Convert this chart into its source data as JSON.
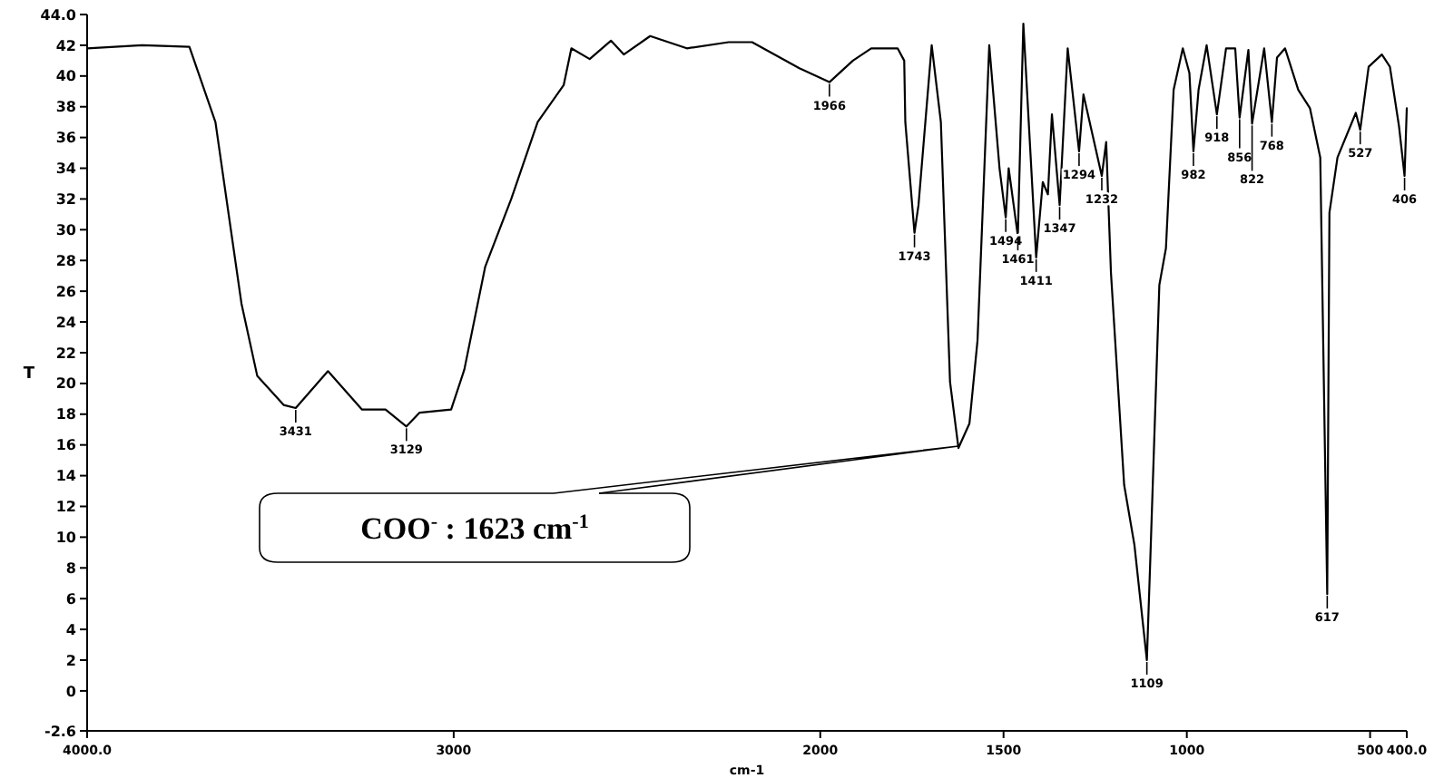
{
  "chart_data": {
    "type": "line",
    "xlabel": "cm-1",
    "ylabel": "T",
    "xlim": [
      4000,
      400
    ],
    "ylim": [
      -2.6,
      44
    ],
    "xticks": [
      {
        "value": 4000,
        "label": "4000.0"
      },
      3000,
      2000,
      1500,
      1000,
      500,
      {
        "value": 400,
        "label": "400.0"
      }
    ],
    "yticks": [
      {
        "value": -2.6,
        "label": "-2.6"
      },
      0,
      2,
      4,
      6,
      8,
      10,
      12,
      14,
      16,
      18,
      20,
      22,
      24,
      26,
      28,
      30,
      32,
      34,
      36,
      38,
      40,
      42,
      {
        "value": 44,
        "label": "44.0"
      }
    ],
    "grid": false,
    "marker": "none",
    "line_style": "solid",
    "series": [
      {
        "color": "#000000",
        "x": [
          4000,
          3850,
          3721,
          3650,
          3579,
          3536,
          3464,
          3431,
          3343,
          3250,
          3186,
          3129,
          3093,
          3007,
          2971,
          2914,
          2843,
          2771,
          2700,
          2679,
          2629,
          2571,
          2536,
          2464,
          2364,
          2250,
          2186,
          2057,
          1975,
          1911,
          1861,
          1789,
          1771,
          1768,
          1743,
          1732,
          1696,
          1671,
          1646,
          1623,
          1593,
          1571,
          1539,
          1511,
          1494,
          1486,
          1461,
          1446,
          1411,
          1393,
          1379,
          1368,
          1347,
          1325,
          1294,
          1282,
          1232,
          1220,
          1207,
          1171,
          1143,
          1109,
          1100,
          1075,
          1057,
          1036,
          1011,
          993,
          982,
          968,
          946,
          918,
          893,
          868,
          856,
          832,
          822,
          789,
          768,
          754,
          732,
          696,
          664,
          636,
          617,
          611,
          589,
          539,
          527,
          504,
          468,
          446,
          421,
          406,
          400
        ],
        "values": [
          41.8,
          42.0,
          41.9,
          37.0,
          25.2,
          20.5,
          18.6,
          18.4,
          20.8,
          18.3,
          18.3,
          17.2,
          18.1,
          18.3,
          20.9,
          27.6,
          32.0,
          37.0,
          39.4,
          41.8,
          41.1,
          42.3,
          41.4,
          42.6,
          41.8,
          42.2,
          42.2,
          40.5,
          39.6,
          41.0,
          41.8,
          41.8,
          41.0,
          37.0,
          29.8,
          31.6,
          42.0,
          37.0,
          20.1,
          15.8,
          17.4,
          22.8,
          42.0,
          34.0,
          30.8,
          34.0,
          29.6,
          43.4,
          28.2,
          33.1,
          32.3,
          37.5,
          31.6,
          41.8,
          35.1,
          38.8,
          33.5,
          35.7,
          27.2,
          13.4,
          9.5,
          2.0,
          8.3,
          26.4,
          28.8,
          39.1,
          41.8,
          40.2,
          35.1,
          39.1,
          42.0,
          37.5,
          41.8,
          41.8,
          37.3,
          41.7,
          36.9,
          41.8,
          37.0,
          41.2,
          41.8,
          39.1,
          37.9,
          34.7,
          6.3,
          31.1,
          34.7,
          37.6,
          36.5,
          40.6,
          41.4,
          40.6,
          36.7,
          33.5,
          37.9
        ]
      }
    ],
    "annotations": [
      {
        "text": "3431",
        "x": 3431,
        "y": 18.4
      },
      {
        "text": "3129",
        "x": 3129,
        "y": 17.2
      },
      {
        "text": "1966",
        "x": 1975,
        "y": 39.6
      },
      {
        "text": "1743",
        "x": 1743,
        "y": 29.8
      },
      {
        "text": "1494",
        "x": 1494,
        "y": 30.8
      },
      {
        "text": "1461",
        "x": 1461,
        "y": 29.6
      },
      {
        "text": "1411",
        "x": 1411,
        "y": 28.2
      },
      {
        "text": "1347",
        "x": 1347,
        "y": 31.6
      },
      {
        "text": "1294",
        "x": 1294,
        "y": 35.1
      },
      {
        "text": "1232",
        "x": 1232,
        "y": 33.5
      },
      {
        "text": "1109",
        "x": 1109,
        "y": 2.0
      },
      {
        "text": "982",
        "x": 982,
        "y": 35.1
      },
      {
        "text": "918",
        "x": 918,
        "y": 37.5
      },
      {
        "text": "856",
        "x": 856,
        "y": 37.3
      },
      {
        "text": "822",
        "x": 822,
        "y": 36.9
      },
      {
        "text": "768",
        "x": 768,
        "y": 37.0
      },
      {
        "text": "617",
        "x": 617,
        "y": 6.3
      },
      {
        "text": "527",
        "x": 527,
        "y": 36.5
      },
      {
        "text": "406",
        "x": 406,
        "y": 33.5
      },
      "COO$^{-}$ : 1623 cm$^{-1}$"
    ]
  }
}
